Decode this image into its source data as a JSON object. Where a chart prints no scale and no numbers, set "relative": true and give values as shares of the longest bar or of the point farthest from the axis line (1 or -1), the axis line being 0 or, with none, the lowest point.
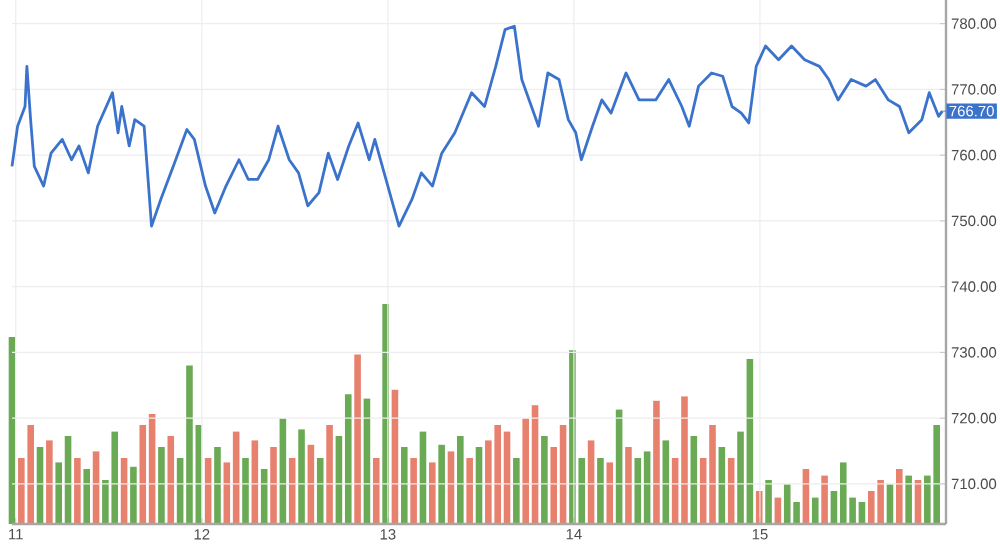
{
  "chart_data": [
    {
      "type": "line",
      "color": "#3b73cc",
      "grid": true,
      "x": [
        10.98,
        11.01,
        11.05,
        11.06,
        11.08,
        11.1,
        11.15,
        11.19,
        11.25,
        11.3,
        11.34,
        11.39,
        11.44,
        11.52,
        11.55,
        11.57,
        11.61,
        11.64,
        11.69,
        11.73,
        11.78,
        11.86,
        11.92,
        11.96,
        12.02,
        12.07,
        12.13,
        12.2,
        12.25,
        12.3,
        12.36,
        12.41,
        12.47,
        12.52,
        12.57,
        12.63,
        12.68,
        12.73,
        12.79,
        12.84,
        12.9,
        12.93,
        12.99,
        13.06,
        13.13,
        13.18,
        13.24,
        13.29,
        13.36,
        13.45,
        13.52,
        13.58,
        13.63,
        13.68,
        13.72,
        13.81,
        13.86,
        13.92,
        13.97,
        14.01,
        14.04,
        14.1,
        14.15,
        14.2,
        14.28,
        14.35,
        14.44,
        14.51,
        14.58,
        14.62,
        14.67,
        14.74,
        14.8,
        14.85,
        14.9,
        14.94,
        14.98,
        15.03,
        15.1,
        15.17,
        15.24,
        15.32,
        15.37,
        15.42,
        15.49,
        15.57,
        15.62,
        15.69,
        15.75,
        15.8,
        15.87,
        15.91,
        15.96,
        15.98
      ],
      "values": [
        758.3,
        764.4,
        767.4,
        773.5,
        765.4,
        758.3,
        755.3,
        760.3,
        762.4,
        759.3,
        761.4,
        757.3,
        764.4,
        769.5,
        763.4,
        767.4,
        761.4,
        765.4,
        764.4,
        749.2,
        753.3,
        759.3,
        763.9,
        762.4,
        755.3,
        751.2,
        755.3,
        759.3,
        756.3,
        756.3,
        759.3,
        764.4,
        759.3,
        757.3,
        752.3,
        754.3,
        760.3,
        756.3,
        761.4,
        764.9,
        759.3,
        762.4,
        756.3,
        749.2,
        753.3,
        757.3,
        755.3,
        760.3,
        763.4,
        769.5,
        767.4,
        773.5,
        779.1,
        779.6,
        771.5,
        764.4,
        772.5,
        771.5,
        765.4,
        763.4,
        759.3,
        764.4,
        768.4,
        766.4,
        772.5,
        768.4,
        768.4,
        771.5,
        767.4,
        764.4,
        770.5,
        772.5,
        772.0,
        767.4,
        766.4,
        764.9,
        773.5,
        776.6,
        774.5,
        776.6,
        774.5,
        773.5,
        771.5,
        768.4,
        771.5,
        770.5,
        771.5,
        768.4,
        767.4,
        763.4,
        765.4,
        769.5,
        765.9,
        766.7
      ],
      "xlim": [
        10.98,
        16.0
      ],
      "xticks": [
        11,
        12,
        13,
        14,
        15
      ],
      "ylim": [
        703.9,
        783.6
      ],
      "yticks": [
        {
          "value": 710,
          "label": "710.00"
        },
        {
          "value": 720,
          "label": "720.00"
        },
        {
          "value": 730,
          "label": "730.00"
        },
        {
          "value": 740,
          "label": "740.00"
        },
        {
          "value": 750,
          "label": "750.00"
        },
        {
          "value": 760,
          "label": "760.00"
        },
        {
          "value": 770,
          "label": "770.00"
        },
        {
          "value": 780,
          "label": "780.00"
        }
      ],
      "annotations": [
        {
          "text": "766.70",
          "x": 15.98,
          "y": 766.7
        }
      ]
    },
    {
      "type": "bar",
      "relative": true,
      "categories": [
        null,
        null,
        null,
        null,
        null,
        null,
        null,
        null,
        null,
        null,
        null,
        null,
        null,
        null,
        null,
        null,
        null,
        null,
        null,
        null,
        null,
        null,
        null,
        null,
        null,
        null,
        null,
        null,
        null,
        null,
        null,
        null,
        null,
        null,
        null,
        null,
        null,
        null,
        null,
        null,
        null,
        null,
        null,
        null,
        null,
        null,
        null,
        null,
        null,
        null,
        null,
        null,
        null,
        null,
        null,
        null,
        null,
        null,
        null,
        null,
        null,
        null,
        null,
        null,
        null,
        null,
        null,
        null,
        null,
        null,
        null,
        null,
        null,
        null,
        null,
        null,
        null,
        null,
        null,
        null,
        null,
        null,
        null,
        null,
        null,
        null,
        null,
        null,
        null,
        null,
        null,
        null,
        null,
        null,
        null,
        null,
        null,
        null,
        null,
        null
      ],
      "values": [
        0.85,
        0.3,
        0.45,
        0.35,
        0.38,
        0.28,
        0.4,
        0.3,
        0.25,
        0.33,
        0.2,
        0.42,
        0.3,
        0.26,
        0.45,
        0.5,
        0.35,
        0.4,
        0.3,
        0.72,
        0.45,
        0.3,
        0.35,
        0.28,
        0.42,
        0.3,
        0.38,
        0.25,
        0.35,
        0.48,
        0.3,
        0.43,
        0.36,
        0.3,
        0.45,
        0.4,
        0.59,
        0.77,
        0.57,
        0.3,
        1.0,
        0.61,
        0.35,
        0.3,
        0.42,
        0.28,
        0.36,
        0.33,
        0.4,
        0.3,
        0.35,
        0.38,
        0.45,
        0.42,
        0.3,
        0.48,
        0.54,
        0.4,
        0.35,
        0.45,
        0.79,
        0.3,
        0.38,
        0.3,
        0.28,
        0.52,
        0.35,
        0.3,
        0.33,
        0.56,
        0.38,
        0.3,
        0.58,
        0.4,
        0.3,
        0.45,
        0.35,
        0.3,
        0.42,
        0.75,
        0.15,
        0.2,
        0.12,
        0.18,
        0.1,
        0.25,
        0.12,
        0.22,
        0.15,
        0.28,
        0.12,
        0.1,
        0.15,
        0.2,
        0.18,
        0.25,
        0.22,
        0.2,
        0.22,
        0.45
      ],
      "colors": [
        "#6aaa55",
        "#e8806e",
        "#e8806e",
        "#6aaa55",
        "#e8806e",
        "#6aaa55",
        "#6aaa55",
        "#e8806e",
        "#6aaa55",
        "#e8806e",
        "#6aaa55",
        "#6aaa55",
        "#e8806e",
        "#6aaa55",
        "#e8806e",
        "#e8806e",
        "#6aaa55",
        "#e8806e",
        "#6aaa55",
        "#6aaa55",
        "#6aaa55",
        "#e8806e",
        "#6aaa55",
        "#e8806e",
        "#e8806e",
        "#6aaa55",
        "#e8806e",
        "#6aaa55",
        "#e8806e",
        "#6aaa55",
        "#e8806e",
        "#6aaa55",
        "#e8806e",
        "#6aaa55",
        "#e8806e",
        "#6aaa55",
        "#6aaa55",
        "#e8806e",
        "#6aaa55",
        "#e8806e",
        "#6aaa55",
        "#e8806e",
        "#6aaa55",
        "#e8806e",
        "#6aaa55",
        "#e8806e",
        "#6aaa55",
        "#e8806e",
        "#6aaa55",
        "#e8806e",
        "#6aaa55",
        "#e8806e",
        "#e8806e",
        "#e8806e",
        "#6aaa55",
        "#e8806e",
        "#e8806e",
        "#6aaa55",
        "#e8806e",
        "#e8806e",
        "#6aaa55",
        "#6aaa55",
        "#e8806e",
        "#6aaa55",
        "#e8806e",
        "#6aaa55",
        "#e8806e",
        "#6aaa55",
        "#6aaa55",
        "#e8806e",
        "#6aaa55",
        "#e8806e",
        "#e8806e",
        "#6aaa55",
        "#e8806e",
        "#e8806e",
        "#6aaa55",
        "#e8806e",
        "#6aaa55",
        "#6aaa55",
        "#e8806e",
        "#6aaa55",
        "#e8806e",
        "#6aaa55",
        "#6aaa55",
        "#e8806e",
        "#6aaa55",
        "#e8806e",
        "#6aaa55",
        "#6aaa55",
        "#6aaa55",
        "#6aaa55",
        "#e8806e",
        "#e8806e",
        "#6aaa55",
        "#e8806e",
        "#6aaa55",
        "#e8806e",
        "#6aaa55",
        "#6aaa55"
      ]
    }
  ]
}
